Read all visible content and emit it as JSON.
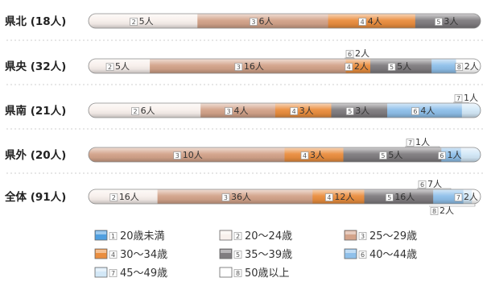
{
  "chart_data": {
    "type": "bar",
    "stacked": "percent",
    "orientation": "horizontal",
    "title": "",
    "unit": "人",
    "categories": [
      "県北 (18人)",
      "県央 (32人)",
      "県南 (21人)",
      "県外 (20人)",
      "全体 (91人)"
    ],
    "series": [
      {
        "name": "20歳未満",
        "values": [
          0,
          0,
          0,
          0,
          0
        ]
      },
      {
        "name": "20～24歳",
        "values": [
          5,
          5,
          6,
          0,
          16
        ]
      },
      {
        "name": "25～29歳",
        "values": [
          6,
          16,
          4,
          10,
          36
        ]
      },
      {
        "name": "30～34歳",
        "values": [
          4,
          2,
          3,
          3,
          12
        ]
      },
      {
        "name": "35～39歳",
        "values": [
          3,
          5,
          3,
          5,
          16
        ]
      },
      {
        "name": "40～44歳",
        "values": [
          0,
          2,
          4,
          1,
          7
        ]
      },
      {
        "name": "45～49歳",
        "values": [
          0,
          0,
          1,
          1,
          2
        ]
      },
      {
        "name": "50歳以上",
        "values": [
          0,
          2,
          0,
          0,
          2
        ]
      }
    ],
    "segment_labels": [
      [
        {
          "n": "2",
          "t": "5人"
        },
        {
          "n": "3",
          "t": "6人"
        },
        {
          "n": "4",
          "t": "4人"
        },
        {
          "n": "5",
          "t": "3人"
        }
      ],
      [
        {
          "n": "2",
          "t": "5人"
        },
        {
          "n": "3",
          "t": "16人"
        },
        {
          "n": "4",
          "t": "2人"
        },
        {
          "n": "5",
          "t": "5人"
        },
        {
          "n": "6",
          "t": "2人"
        },
        {
          "n": "8",
          "t": "2人"
        }
      ],
      [
        {
          "n": "2",
          "t": "6人"
        },
        {
          "n": "3",
          "t": "4人"
        },
        {
          "n": "4",
          "t": "3人"
        },
        {
          "n": "5",
          "t": "3人"
        },
        {
          "n": "6",
          "t": "4人"
        },
        {
          "n": "7",
          "t": "1人"
        }
      ],
      [
        {
          "n": "3",
          "t": "10人"
        },
        {
          "n": "4",
          "t": "3人"
        },
        {
          "n": "5",
          "t": "5人"
        },
        {
          "n": "6",
          "t": "1人"
        },
        {
          "n": "7",
          "t": "1人"
        }
      ],
      [
        {
          "n": "2",
          "t": "16人"
        },
        {
          "n": "3",
          "t": "36人"
        },
        {
          "n": "4",
          "t": "12人"
        },
        {
          "n": "5",
          "t": "16人"
        },
        {
          "n": "6",
          "t": "7人"
        },
        {
          "n": "7",
          "t": "2人"
        },
        {
          "n": "8",
          "t": "2人"
        }
      ]
    ],
    "legend": [
      {
        "n": "1",
        "label": "20歳未満"
      },
      {
        "n": "2",
        "label": "20～24歳"
      },
      {
        "n": "3",
        "label": "25～29歳"
      },
      {
        "n": "4",
        "label": "30～34歳"
      },
      {
        "n": "5",
        "label": "35～39歳"
      },
      {
        "n": "6",
        "label": "40～44歳"
      },
      {
        "n": "7",
        "label": "45～49歳"
      },
      {
        "n": "8",
        "label": "50歳以上"
      }
    ],
    "colors": {
      "20歳未満": "#4f9fe0",
      "20～24歳": "#f8f0ec",
      "25～29歳": "#d3a38a",
      "30～34歳": "#ea8e3f",
      "35～39歳": "#807d80",
      "40～44歳": "#8fc0ea",
      "45～49歳": "#d3e8f7",
      "50歳以上": "#ffffff"
    },
    "legend_position": "bottom",
    "grid": false
  }
}
